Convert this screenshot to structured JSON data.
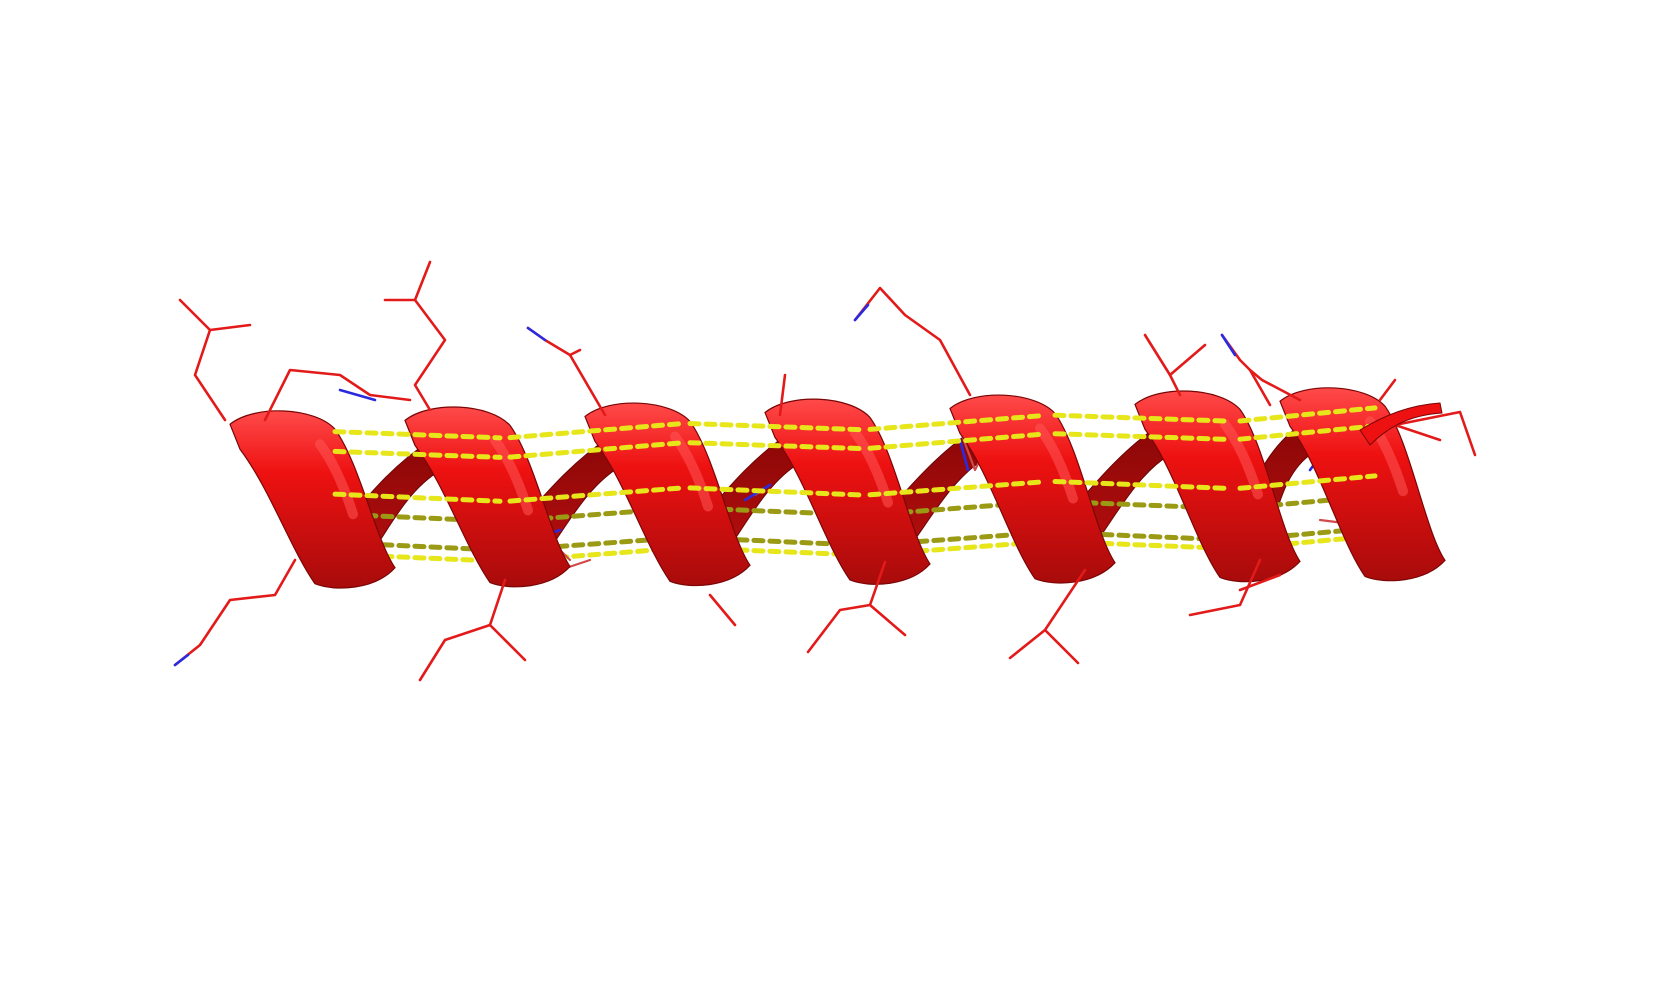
{
  "scene": {
    "subject": "alpha-helix-ribbon",
    "background_color": "#ffffff",
    "colors": {
      "ribbon": "#ee1111",
      "ribbon_highlight": "#ff5555",
      "ribbon_shadow": "#9a0808",
      "ribbon_back": "#b30d0d",
      "side_chain": "#e31a1a",
      "side_chain_dim": "#d04a4a",
      "nitrogen": "#2a2ae0",
      "hydrogen_bond": "#e6e61a",
      "hydrogen_bond_dim": "#9a9a14"
    },
    "helix_turns": 6.5,
    "side_chain_count": 24,
    "hydrogen_bond_count": 22
  }
}
